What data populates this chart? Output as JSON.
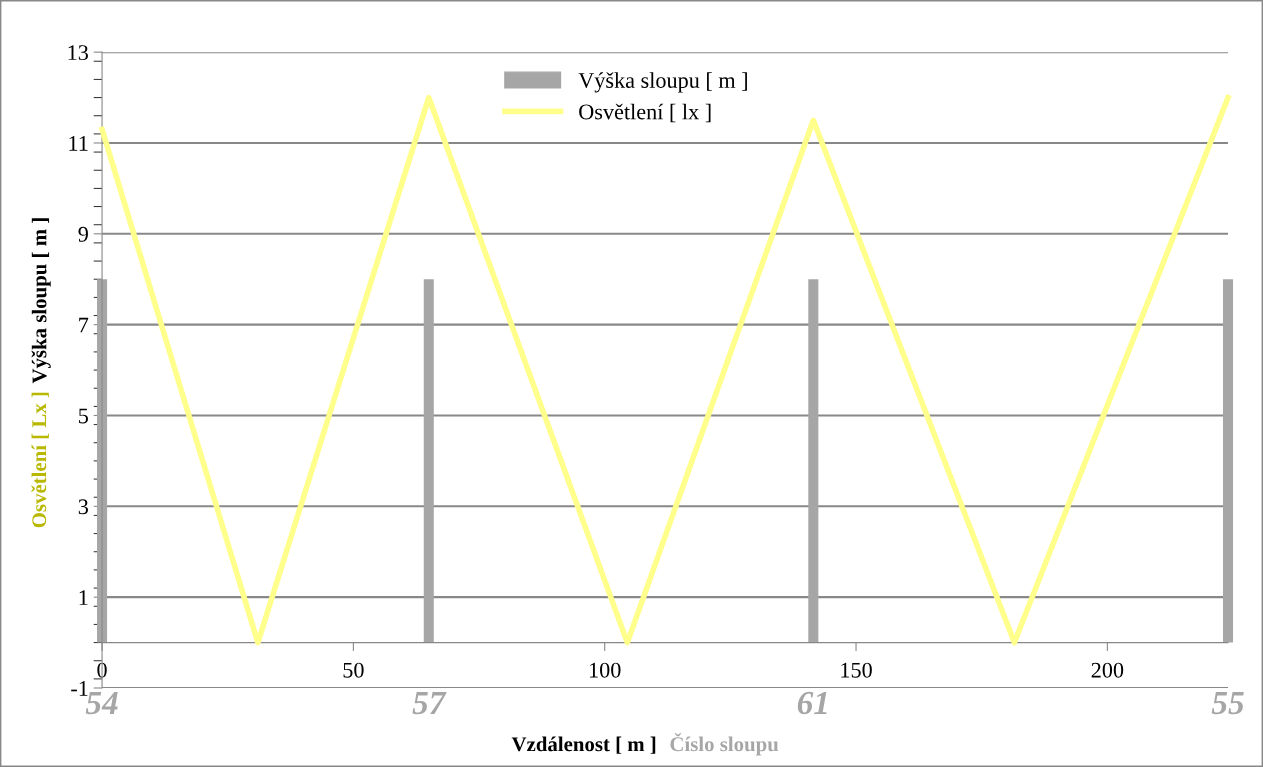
{
  "chart_data": {
    "type": "line",
    "xlabel": "Vzdálenost [ m ]",
    "ylabel": "Výška sloupu [ m ]",
    "xlim": [
      0,
      224
    ],
    "xticks": [
      0,
      50,
      100,
      150,
      200
    ],
    "ylim": [
      -1,
      13
    ],
    "yticks": [
      -1,
      1,
      3,
      5,
      7,
      9,
      11,
      13
    ],
    "grid": "y",
    "legend": "top",
    "series": [
      {
        "name": "Výška sloupu [ m ]",
        "type": "bar",
        "color": "#a6a6a6",
        "x": [
          0,
          65,
          141.5,
          224
        ],
        "values": [
          8,
          8,
          8,
          8
        ]
      },
      {
        "name": "Osvětlení [ lx ]",
        "color": "#ffff8c",
        "x": [
          0,
          31,
          65,
          104.5,
          141.5,
          181.5,
          224
        ],
        "values": [
          11.3,
          0,
          12,
          0,
          11.5,
          0,
          12
        ]
      }
    ],
    "annotations": [
      "Číslo sloupu",
      "Osvětlení [ Lx ]",
      "54",
      "57",
      "61",
      "55"
    ]
  }
}
